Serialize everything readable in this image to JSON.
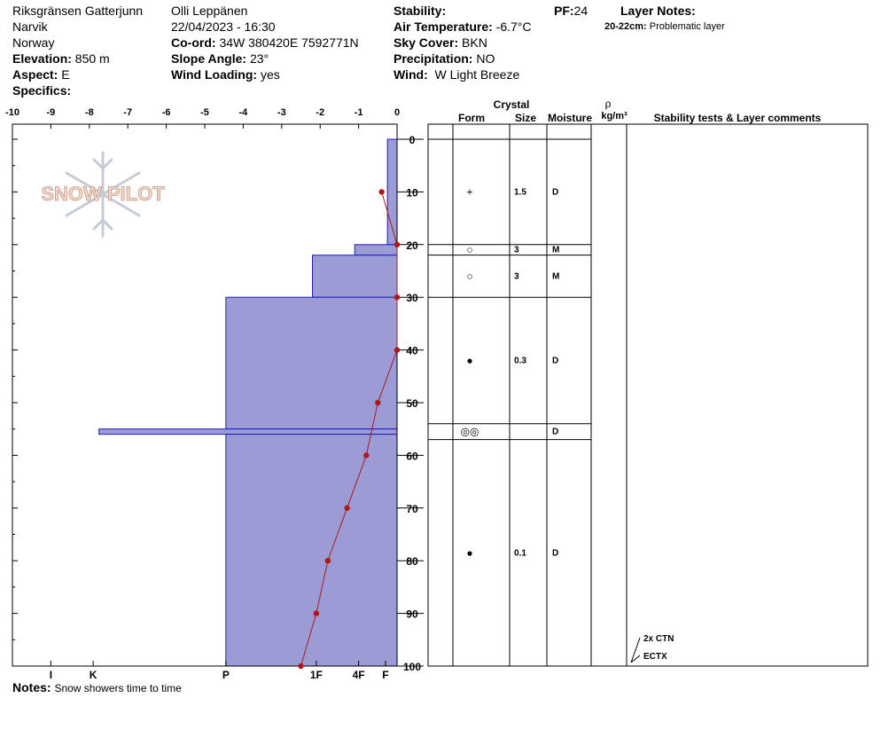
{
  "site": {
    "location": "Riksgränsen Gatterjunn",
    "region": "Narvik",
    "country": "Norway",
    "elevation_label": "Elevation:",
    "elevation": "850 m",
    "aspect_label": "Aspect:",
    "aspect": "E",
    "specifics_label": "Specifics:"
  },
  "observer": {
    "name": "Olli Leppänen",
    "datetime": "22/04/2023 - 16:30",
    "coord_label": "Co-ord:",
    "coord": "34W 380420E 7592771N",
    "slope_label": "Slope Angle:",
    "slope": "23°",
    "wind_loading_label": "Wind Loading:",
    "wind_loading": "yes"
  },
  "conditions": {
    "stability_label": "Stability:",
    "stability": "",
    "air_temp_label": "Air Temperature:",
    "air_temp": "-6.7°C",
    "sky_label": "Sky Cover:",
    "sky": "BKN",
    "precip_label": "Precipitation:",
    "precip": "NO",
    "wind_label": "Wind:",
    "wind": "W Light Breeze"
  },
  "pf": {
    "label": "PF:",
    "value": "24"
  },
  "layer_notes": {
    "title": "Layer Notes:",
    "items": [
      {
        "range": "20-22cm:",
        "text": "Problematic layer"
      }
    ]
  },
  "notes": {
    "label": "Notes:",
    "text": "Snow showers time to time"
  },
  "logo_text": "SNOW PILOT",
  "table_headers": {
    "crystal": "Crystal",
    "form": "Form",
    "size": "Size",
    "moisture": "Moisture",
    "rho": "ρ",
    "density_unit": "kg/m³",
    "comments": "Stability tests & Layer comments"
  },
  "chart_data": {
    "type": "snow-profile",
    "temperature_axis": {
      "ticks": [
        -10,
        -9,
        -8,
        -7,
        -6,
        -5,
        -4,
        -3,
        -2,
        -1,
        0
      ],
      "range": [
        -10,
        0
      ]
    },
    "depth_axis": {
      "ticks": [
        0,
        10,
        20,
        30,
        40,
        50,
        60,
        70,
        80,
        90,
        100
      ],
      "range": [
        0,
        100
      ],
      "unit": "cm"
    },
    "hardness_labels": [
      {
        "label": "I",
        "value": -9
      },
      {
        "label": "K",
        "value": -7.9
      },
      {
        "label": "P",
        "value": -4.45
      },
      {
        "label": "1F",
        "value": -2.1
      },
      {
        "label": "4F",
        "value": -1
      },
      {
        "label": "F",
        "value": -0.3
      }
    ],
    "hardness_profile": [
      {
        "top": 0,
        "bottom": 20,
        "hardness": -0.25
      },
      {
        "top": 20,
        "bottom": 22,
        "hardness": -1.1
      },
      {
        "top": 22,
        "bottom": 30,
        "hardness": -2.2
      },
      {
        "top": 30,
        "bottom": 55,
        "hardness": -4.45
      },
      {
        "top": 55,
        "bottom": 56,
        "hardness": -7.75
      },
      {
        "top": 56,
        "bottom": 100,
        "hardness": -4.45
      }
    ],
    "temperature_profile": [
      {
        "depth": 10,
        "temp": -0.4
      },
      {
        "depth": 20,
        "temp": 0
      },
      {
        "depth": 30,
        "temp": 0
      },
      {
        "depth": 40,
        "temp": 0
      },
      {
        "depth": 50,
        "temp": -0.5
      },
      {
        "depth": 60,
        "temp": -0.8
      },
      {
        "depth": 70,
        "temp": -1.3
      },
      {
        "depth": 80,
        "temp": -1.8
      },
      {
        "depth": 90,
        "temp": -2.1
      },
      {
        "depth": 100,
        "temp": -2.5
      }
    ],
    "layers": [
      {
        "top": 0,
        "bottom": 20,
        "form": "+",
        "size": "1.5",
        "moisture": "D"
      },
      {
        "top": 20,
        "bottom": 22,
        "form": "○",
        "size": "3",
        "moisture": "M"
      },
      {
        "top": 22,
        "bottom": 30,
        "form": "○",
        "size": "3",
        "moisture": "M"
      },
      {
        "top": 30,
        "bottom": 54,
        "form": "●",
        "size": "0.3",
        "moisture": "D"
      },
      {
        "top": 54,
        "bottom": 57,
        "form": "◎◎",
        "size": "",
        "moisture": "D"
      },
      {
        "top": 57,
        "bottom": 100,
        "form": "●",
        "size": "0.1",
        "moisture": "D"
      }
    ],
    "stability_tests": [
      {
        "text": "2x CTN",
        "depth": 100
      },
      {
        "text": "ECTX",
        "depth": 100
      }
    ]
  }
}
